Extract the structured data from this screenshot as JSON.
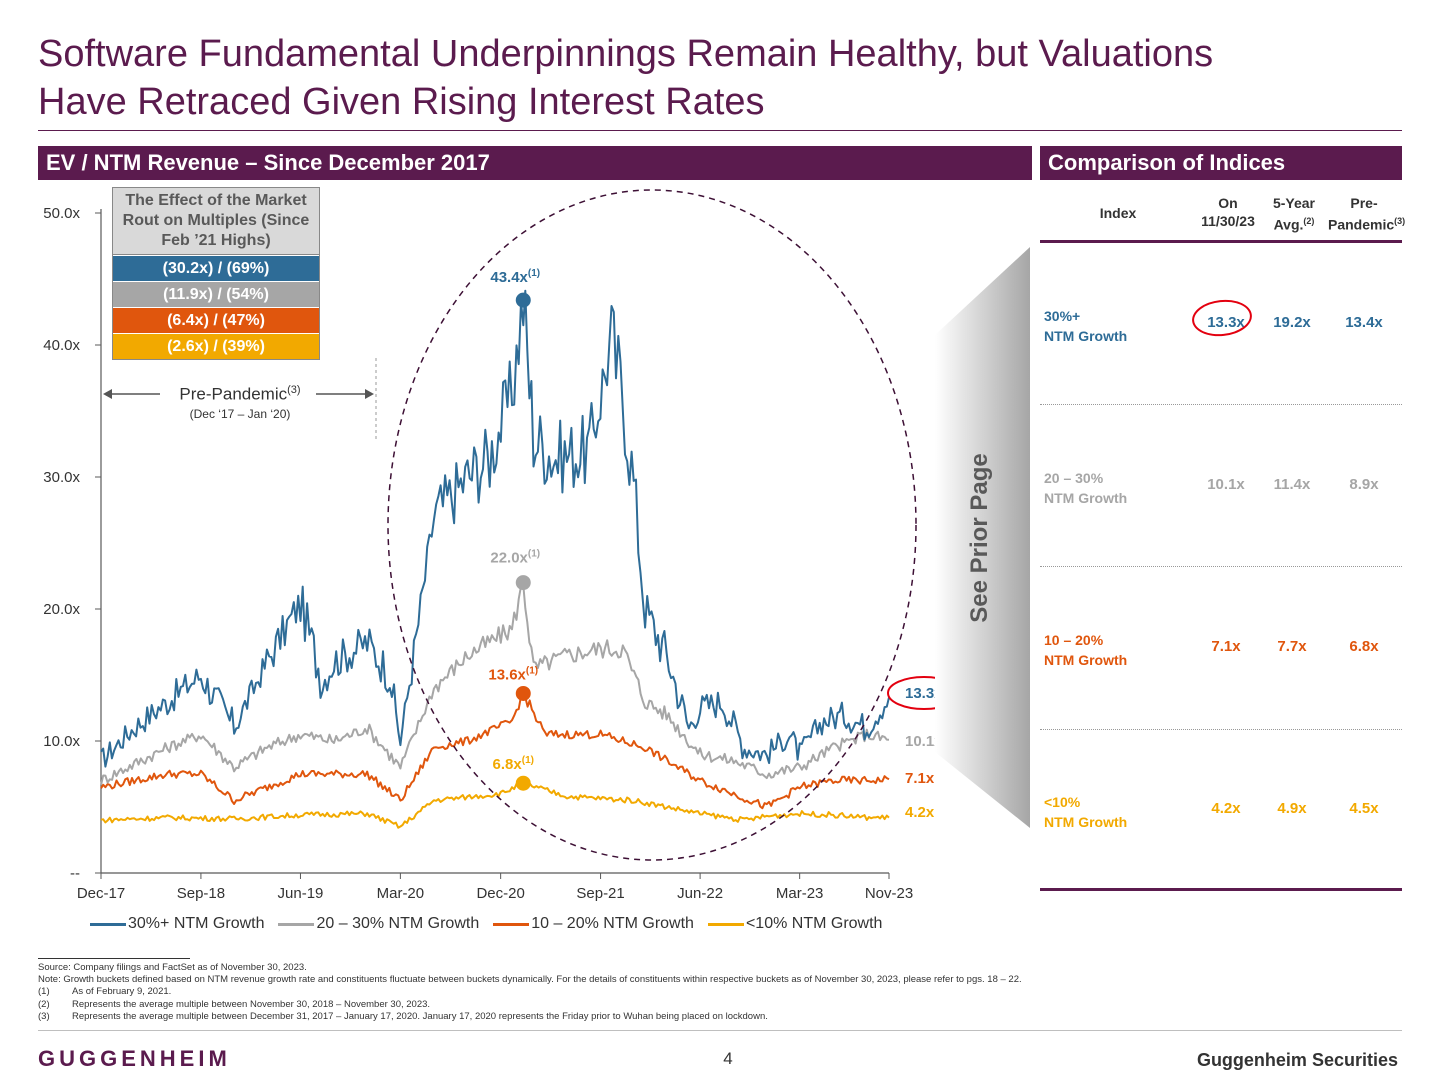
{
  "title": {
    "line1": "Software Fundamental Underpinnings Remain Healthy, but Valuations",
    "line2": "Have Retraced Given Rising Interest Rates"
  },
  "left_header": "EV / NTM Revenue – Since December 2017",
  "right_header": "Comparison of Indices",
  "effect_box": {
    "heading": "The Effect of the Market Rout on Multiples (Since Feb ’21 Highs)",
    "rows": [
      {
        "label": "(30.2x) / (69%)",
        "color": "#2e6c97"
      },
      {
        "label": "(11.9x) / (54%)",
        "color": "#a6a6a6"
      },
      {
        "label": "(6.4x) / (47%)",
        "color": "#e0560d"
      },
      {
        "label": "(2.6x) / (39%)",
        "color": "#f2a900"
      }
    ]
  },
  "pre_pandemic": {
    "label": "Pre-Pandemic",
    "sup": "(3)",
    "sub": "(Dec ‘17 – Jan ‘20)"
  },
  "see_prior": "See Prior Page",
  "chart_data": {
    "type": "line",
    "x_ticks": [
      "Dec-17",
      "Sep-18",
      "Jun-19",
      "Mar-20",
      "Dec-20",
      "Sep-21",
      "Jun-22",
      "Mar-23",
      "Nov-23"
    ],
    "y_ticks": [
      "50.0x",
      "40.0x",
      "30.0x",
      "20.0x",
      "10.0x",
      "--"
    ],
    "ylim": [
      0,
      50
    ],
    "series": [
      {
        "name": "30%+ NTM Growth",
        "color": "#2e6c97",
        "x": [
          "2017-12",
          "2018-03",
          "2018-06",
          "2018-09",
          "2018-12",
          "2019-03",
          "2019-06",
          "2019-08",
          "2019-09",
          "2019-12",
          "2020-02",
          "2020-03",
          "2020-04",
          "2020-06",
          "2020-09",
          "2020-11",
          "2021-01",
          "2021-02",
          "2021-03",
          "2021-05",
          "2021-08",
          "2021-10",
          "2021-11",
          "2021-12",
          "2022-01",
          "2022-03",
          "2022-05",
          "2022-06",
          "2022-08",
          "2022-10",
          "2022-12",
          "2023-02",
          "2023-03",
          "2023-05",
          "2023-07",
          "2023-09",
          "2023-11"
        ],
        "values": [
          8.5,
          11.0,
          13.0,
          15.0,
          11.0,
          16.0,
          20.5,
          14.5,
          16.0,
          17.5,
          15.0,
          10.0,
          15.5,
          27.0,
          30.0,
          31.5,
          36.5,
          43.4,
          33.0,
          31.5,
          32.0,
          40.5,
          36.0,
          29.5,
          20.0,
          16.5,
          11.0,
          12.5,
          13.0,
          9.5,
          9.0,
          10.5,
          9.0,
          11.5,
          12.0,
          11.0,
          13.3
        ]
      },
      {
        "name": "20 – 30% NTM Growth",
        "color": "#a6a6a6",
        "x": [
          "2017-12",
          "2018-06",
          "2018-09",
          "2018-12",
          "2019-03",
          "2019-06",
          "2019-09",
          "2019-12",
          "2020-03",
          "2020-06",
          "2020-09",
          "2021-01",
          "2021-02",
          "2021-03",
          "2021-06",
          "2021-09",
          "2021-11",
          "2022-01",
          "2022-03",
          "2022-06",
          "2022-09",
          "2022-12",
          "2023-03",
          "2023-06",
          "2023-09",
          "2023-11"
        ],
        "values": [
          7.0,
          9.5,
          10.5,
          8.0,
          9.5,
          10.5,
          10.0,
          11.0,
          8.0,
          14.0,
          16.5,
          18.5,
          22.0,
          15.5,
          16.5,
          17.0,
          17.0,
          13.0,
          12.0,
          9.0,
          8.5,
          7.5,
          8.0,
          9.5,
          10.5,
          10.1
        ]
      },
      {
        "name": "10 – 20% NTM Growth",
        "color": "#e0560d",
        "x": [
          "2017-12",
          "2018-06",
          "2018-09",
          "2018-12",
          "2019-06",
          "2019-12",
          "2020-03",
          "2020-06",
          "2020-09",
          "2021-01",
          "2021-02",
          "2021-04",
          "2021-09",
          "2022-01",
          "2022-06",
          "2022-09",
          "2022-12",
          "2023-03",
          "2023-06",
          "2023-09",
          "2023-11"
        ],
        "values": [
          6.5,
          7.5,
          7.5,
          5.5,
          7.5,
          7.5,
          5.5,
          9.5,
          10.0,
          11.5,
          13.6,
          10.5,
          10.5,
          9.5,
          7.0,
          6.0,
          5.0,
          6.5,
          7.0,
          7.0,
          7.1
        ]
      },
      {
        "name": "<10% NTM Growth",
        "color": "#f2a900",
        "x": [
          "2017-12",
          "2018-06",
          "2018-12",
          "2019-06",
          "2019-12",
          "2020-03",
          "2020-06",
          "2020-12",
          "2021-02",
          "2021-06",
          "2021-12",
          "2022-06",
          "2022-10",
          "2022-12",
          "2023-03",
          "2023-06",
          "2023-09",
          "2023-11"
        ],
        "values": [
          4.0,
          4.2,
          4.1,
          4.4,
          4.5,
          3.5,
          5.5,
          6.0,
          6.8,
          5.8,
          5.5,
          4.5,
          4.0,
          4.3,
          4.5,
          4.4,
          4.2,
          4.2
        ]
      }
    ],
    "peak_labels": [
      {
        "series": "30%+ NTM Growth",
        "x": "2021-02",
        "value": 43.4,
        "text": "43.4x",
        "sup": "(1)"
      },
      {
        "series": "20 – 30% NTM Growth",
        "x": "2021-02",
        "value": 22.0,
        "text": "22.0x",
        "sup": "(1)"
      },
      {
        "series": "10 – 20% NTM Growth",
        "x": "2021-02",
        "value": 13.6,
        "text": "13.6x",
        "sup": "(1)"
      },
      {
        "series": "<10% NTM Growth",
        "x": "2021-02",
        "value": 6.8,
        "text": "6.8x",
        "sup": "(1)"
      }
    ],
    "end_labels": [
      "13.3x",
      "10.1x",
      "7.1x",
      "4.2x"
    ]
  },
  "comparison": {
    "headers": [
      {
        "text": "Index",
        "sup": ""
      },
      {
        "text": "On 11/30/23",
        "sup": ""
      },
      {
        "text": "5-Year Avg.",
        "sup": "(2)"
      },
      {
        "text": "Pre-Pandemic",
        "sup": "(3)"
      }
    ],
    "rows": [
      {
        "label1": "30%+",
        "label2": "NTM Growth",
        "color": "#2e6c97",
        "values": [
          "13.3x",
          "19.2x",
          "13.4x"
        ]
      },
      {
        "label1": "20 – 30%",
        "label2": "NTM Growth",
        "color": "#a6a6a6",
        "values": [
          "10.1x",
          "11.4x",
          "8.9x"
        ]
      },
      {
        "label1": "10 – 20%",
        "label2": "NTM Growth",
        "color": "#e0560d",
        "values": [
          "7.1x",
          "7.7x",
          "6.8x"
        ]
      },
      {
        "label1": "<10%",
        "label2": "NTM Growth",
        "color": "#f2a900",
        "values": [
          "4.2x",
          "4.9x",
          "4.5x"
        ]
      }
    ]
  },
  "footnotes": {
    "source": "Source: Company filings and FactSet as of November 30, 2023.",
    "note": "Note: Growth buckets defined based on NTM revenue growth rate and constituents fluctuate between buckets dynamically. For the details of constituents within respective buckets as of November 30, 2023, please refer to pgs. 18 – 22.",
    "items": [
      {
        "num": "(1)",
        "text": "As of February 9, 2021."
      },
      {
        "num": "(2)",
        "text": "Represents the average multiple between November 30, 2018 – November 30, 2023."
      },
      {
        "num": "(3)",
        "text": "Represents the average multiple between December 31, 2017 – January 17, 2020. January 17, 2020 represents the Friday prior to Wuhan being placed on lockdown."
      }
    ]
  },
  "footer": {
    "logo": "GUGGENHEIM",
    "page": "4",
    "firm": "Guggenheim Securities"
  }
}
